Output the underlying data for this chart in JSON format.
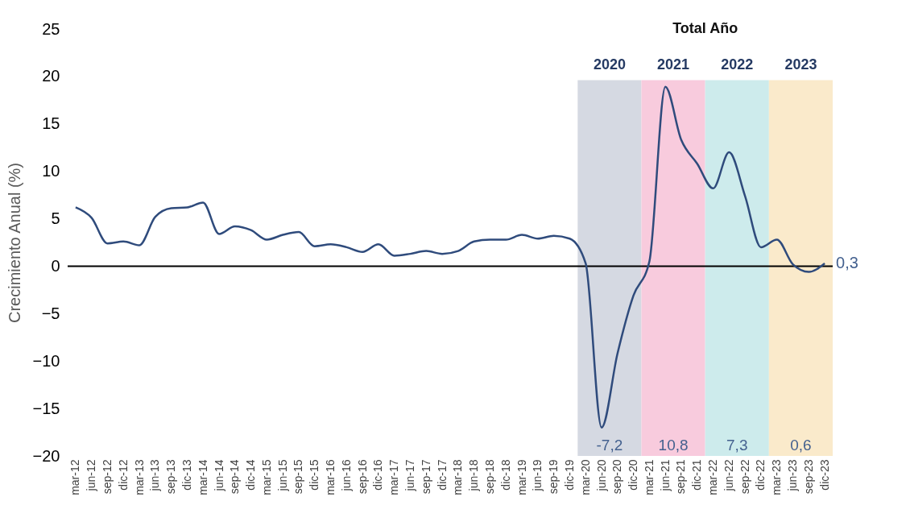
{
  "chart_data": {
    "type": "line",
    "ylabel": "Crecimiento Anual (%)",
    "categories": [
      "mar-12",
      "jun-12",
      "sep-12",
      "dic-12",
      "mar-13",
      "jun-13",
      "sep-13",
      "dic-13",
      "mar-14",
      "jun-14",
      "sep-14",
      "dic-14",
      "mar-15",
      "jun-15",
      "sep-15",
      "dic-15",
      "mar-16",
      "jun-16",
      "sep-16",
      "dic-16",
      "mar-17",
      "jun-17",
      "sep-17",
      "dic-17",
      "mar-18",
      "jun-18",
      "sep-18",
      "dic-18",
      "mar-19",
      "jun-19",
      "sep-19",
      "dic-19",
      "mar-20",
      "jun-20",
      "sep-20",
      "dic-20",
      "mar-21",
      "jun-21",
      "sep-21",
      "dic-21",
      "mar-22",
      "jun-22",
      "sep-22",
      "dic-22",
      "mar-23",
      "jun-23",
      "sep-23",
      "dic-23"
    ],
    "series": [
      {
        "color": "#2f4b7c",
        "values": [
          6.2,
          5.1,
          2.4,
          2.6,
          2.2,
          5.2,
          6.1,
          6.2,
          6.7,
          3.4,
          4.2,
          3.8,
          2.8,
          3.3,
          3.6,
          2.1,
          2.3,
          2.0,
          1.5,
          2.3,
          1.1,
          1.3,
          1.6,
          1.3,
          1.6,
          2.6,
          2.8,
          2.8,
          3.3,
          2.9,
          3.2,
          2.9,
          0.3,
          -17.0,
          -9.2,
          -3.1,
          0.5,
          18.9,
          13.3,
          10.8,
          8.2,
          12.0,
          7.4,
          2.0,
          2.8,
          0.2,
          -0.6,
          0.3
        ]
      }
    ],
    "ylim": [
      -20,
      25
    ],
    "yticks": [
      -20,
      -15,
      -10,
      -5,
      0,
      5,
      10,
      15,
      20,
      25
    ],
    "grid": false,
    "line_style": "solid",
    "marker": "none",
    "ref_lines": [
      {
        "axis": "y",
        "value": 0,
        "color": "#000000"
      }
    ],
    "bands": [
      {
        "axis": "x",
        "from": "mar-20",
        "to": "dic-20",
        "label": "2020",
        "color": "#d5d9e2"
      },
      {
        "axis": "x",
        "from": "mar-21",
        "to": "dic-21",
        "label": "2021",
        "color": "#f8cbdd"
      },
      {
        "axis": "x",
        "from": "mar-22",
        "to": "dic-22",
        "label": "2022",
        "color": "#cdebec"
      },
      {
        "axis": "x",
        "from": "mar-23",
        "to": "dic-23",
        "label": "2023",
        "color": "#faeacb"
      }
    ],
    "annotations": [
      "Total Año",
      "-7,2",
      "10,8",
      "7,3",
      "0,6",
      {
        "text": "0,3",
        "x": "dic-23",
        "y": 0.3
      }
    ]
  }
}
